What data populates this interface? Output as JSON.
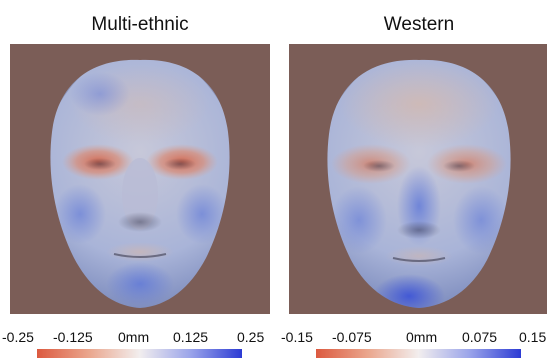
{
  "panels": [
    {
      "title": "Multi-ethnic",
      "colorbar": {
        "ticks": [
          "-0.25",
          "-0.125",
          "0mm",
          "0.125",
          "0.25"
        ],
        "min": -0.25,
        "max": 0.25
      }
    },
    {
      "title": "Western",
      "colorbar": {
        "ticks": [
          "-0.15",
          "-0.075",
          "0mm",
          "0.075",
          "0.15"
        ],
        "min": -0.15,
        "max": 0.15
      }
    }
  ],
  "colors": {
    "background": "#7b5d57",
    "negative": "#d9553f",
    "neutral": "#e8e4e2",
    "positive": "#2e3fd6"
  }
}
